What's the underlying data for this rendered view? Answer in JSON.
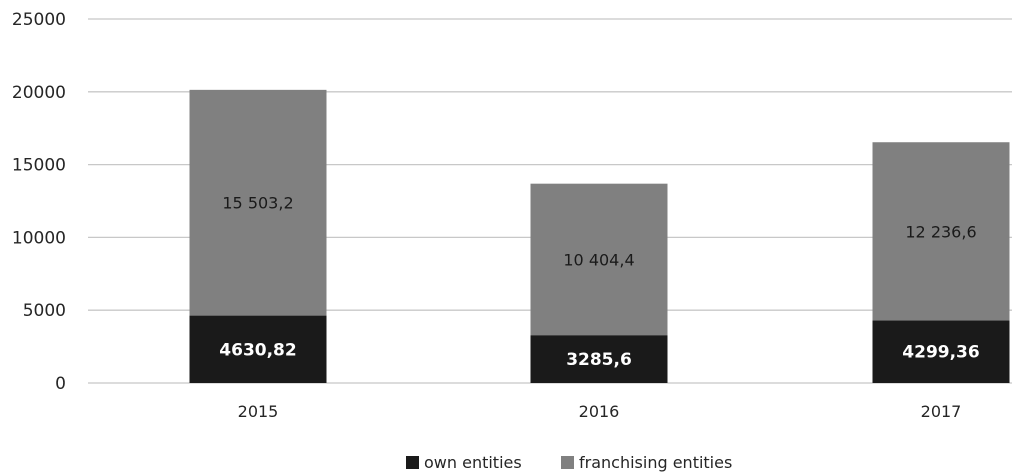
{
  "chart_data": {
    "type": "bar",
    "stacked": true,
    "title": "",
    "xlabel": "",
    "ylabel": "",
    "categories": [
      "2015",
      "2016",
      "2017"
    ],
    "ylim": [
      0,
      25000
    ],
    "yticks": [
      0,
      5000,
      10000,
      15000,
      20000,
      25000
    ],
    "ytick_labels": [
      "0",
      "5000",
      "10000",
      "15000",
      "20000",
      "25000"
    ],
    "grid": true,
    "legend_position": "bottom",
    "series": [
      {
        "name": "own entities",
        "color": "#1a1a1a",
        "values": [
          4630.82,
          3285.6,
          4299.36
        ],
        "labels": [
          "4630,82",
          "3285,6",
          "4299,36"
        ]
      },
      {
        "name": "franchising entities",
        "color": "#808080",
        "values": [
          15503.2,
          10404.4,
          12236.6
        ],
        "labels": [
          "15 503,2",
          "10 404,4",
          "12 236,6"
        ]
      }
    ]
  }
}
